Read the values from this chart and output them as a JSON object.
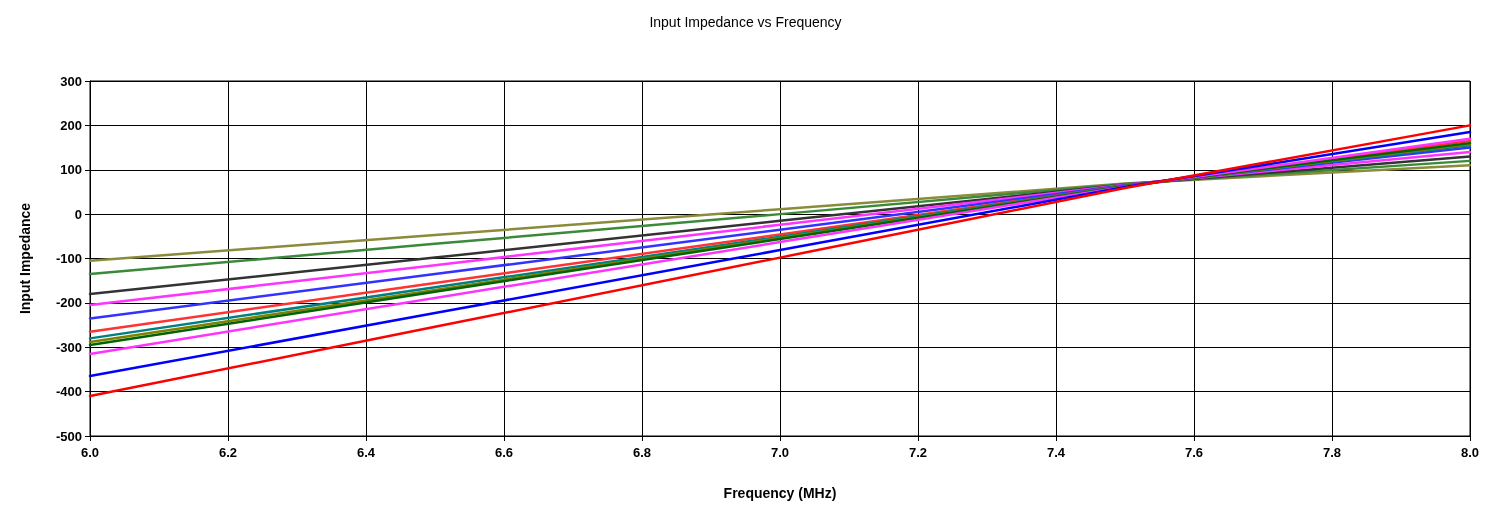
{
  "chart_data": {
    "type": "line",
    "title": "Input Impedance vs Frequency",
    "xlabel": "Frequency (MHz)",
    "ylabel": "Input Impedance",
    "x": [
      6.0,
      6.5,
      7.0,
      7.5,
      8.0
    ],
    "xlim": [
      6.0,
      8.0
    ],
    "xticks": [
      {
        "value": 6.0,
        "label": "6.0"
      },
      {
        "value": 6.2,
        "label": "6.2"
      },
      {
        "value": 6.4,
        "label": "6.4"
      },
      {
        "value": 6.6,
        "label": "6.6"
      },
      {
        "value": 6.8,
        "label": "6.8"
      },
      {
        "value": 7.0,
        "label": "7.0"
      },
      {
        "value": 7.2,
        "label": "7.2"
      },
      {
        "value": 7.4,
        "label": "7.4"
      },
      {
        "value": 7.6,
        "label": "7.6"
      },
      {
        "value": 7.8,
        "label": "7.8"
      },
      {
        "value": 8.0,
        "label": "8.0"
      }
    ],
    "ylim": [
      -500,
      300
    ],
    "yticks": [
      -500,
      -400,
      -300,
      -200,
      -100,
      0,
      100,
      200,
      300
    ],
    "grid": true,
    "marker": "none",
    "line_style": "solid",
    "series": [
      {
        "color": "#8b8b3c",
        "values": [
          -105,
          -47,
          11,
          69,
          110
        ]
      },
      {
        "color": "#3a8a3a",
        "values": [
          -135,
          -67,
          0,
          68,
          120
        ]
      },
      {
        "color": "#333333",
        "values": [
          -180,
          -98,
          -15,
          67,
          130
        ]
      },
      {
        "color": "#ff33ff",
        "values": [
          -205,
          -115,
          -24,
          66,
          140
        ]
      },
      {
        "color": "#3333ff",
        "values": [
          -235,
          -135,
          -35,
          65,
          150
        ]
      },
      {
        "color": "#ff3333",
        "values": [
          -265,
          -155,
          -46,
          64,
          165
        ]
      },
      {
        "color": "#008080",
        "values": [
          -280,
          -165,
          -51,
          64,
          155
        ]
      },
      {
        "color": "#808000",
        "values": [
          -288,
          -171,
          -54,
          63,
          158
        ]
      },
      {
        "color": "#006400",
        "values": [
          -295,
          -175,
          -56,
          63,
          160
        ]
      },
      {
        "color": "#ff33ff",
        "values": [
          -315,
          -189,
          -63,
          62,
          170
        ]
      },
      {
        "color": "#0000ff",
        "values": [
          -365,
          -223,
          -81,
          61,
          185
        ]
      },
      {
        "color": "#ff0000",
        "values": [
          -410,
          -254,
          -98,
          59,
          200
        ]
      }
    ]
  }
}
